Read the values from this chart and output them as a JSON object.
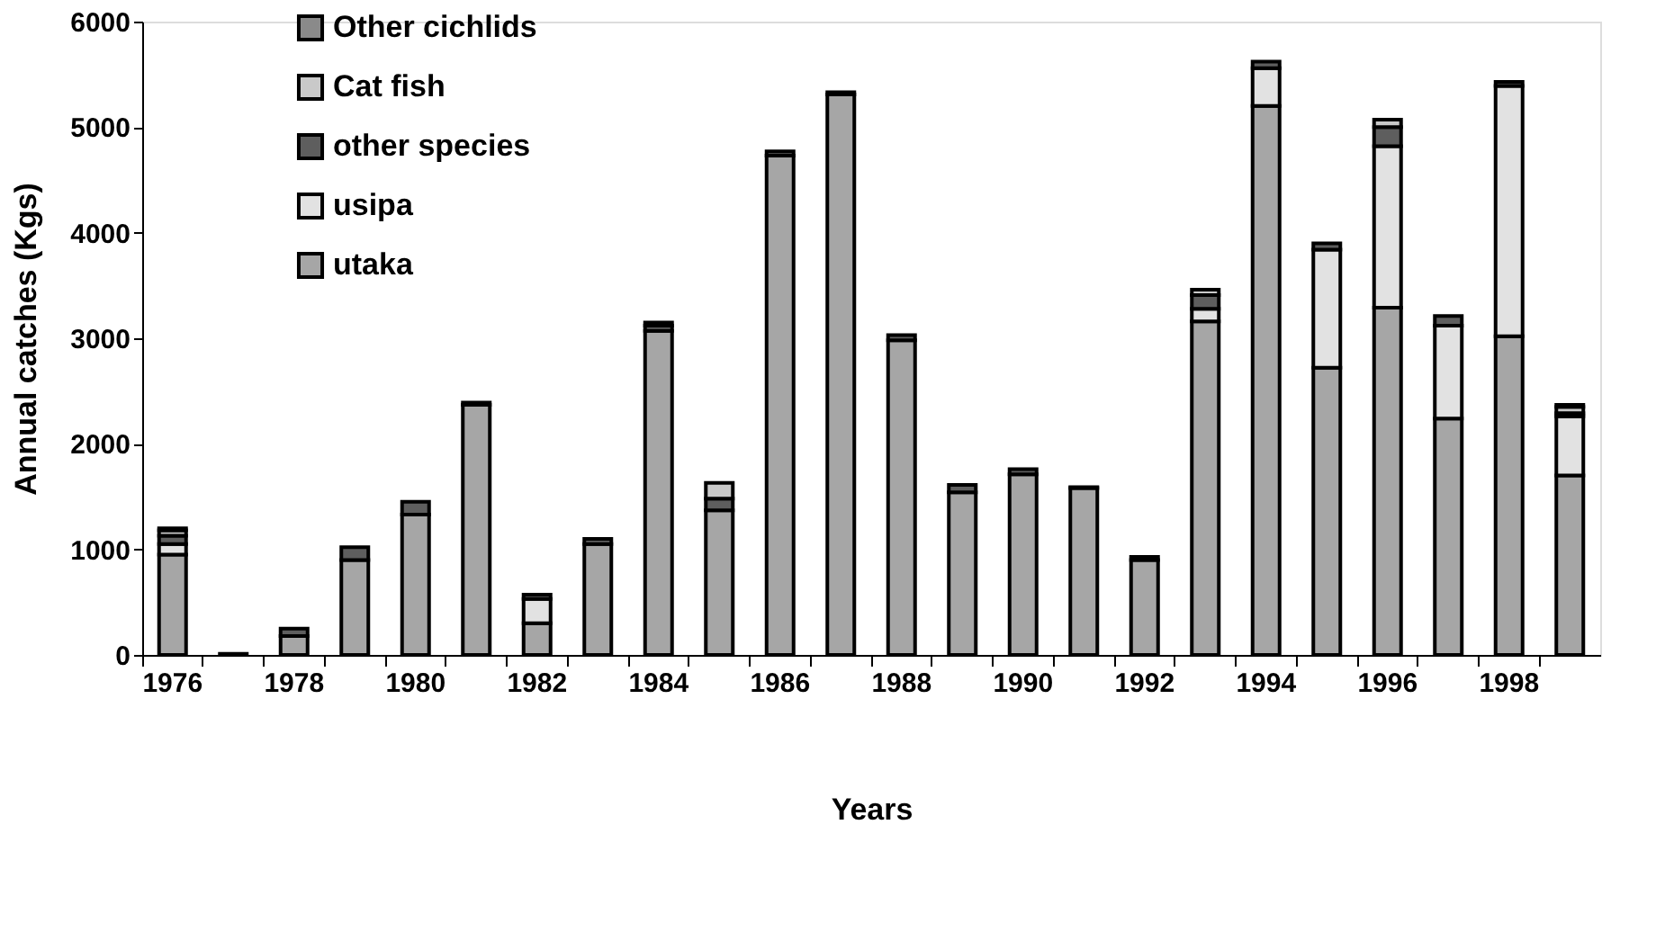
{
  "chart_data": {
    "type": "bar",
    "stacked": true,
    "xlabel": "Years",
    "ylabel": "Annual catches (Kgs)",
    "categories": [
      "1976",
      null,
      "1978",
      null,
      "1980",
      null,
      "1982",
      null,
      "1984",
      null,
      "1986",
      null,
      "1988",
      null,
      "1990",
      null,
      "1992",
      null,
      "1994",
      null,
      "1996",
      null,
      "1998",
      null
    ],
    "series": [
      {
        "name": "utaka",
        "color": "#a6a6a6",
        "values": [
          950,
          10,
          180,
          900,
          1330,
          2370,
          300,
          1050,
          3070,
          1370,
          4730,
          5310,
          2980,
          1540,
          1710,
          1580,
          900,
          3160,
          5200,
          2720,
          3290,
          2240,
          3020,
          1700
        ]
      },
      {
        "name": "usipa",
        "color": "#e2e2e2",
        "values": [
          100,
          null,
          null,
          null,
          null,
          null,
          230,
          null,
          null,
          null,
          null,
          null,
          null,
          null,
          null,
          null,
          null,
          120,
          360,
          1120,
          1530,
          880,
          2370,
          560
        ]
      },
      {
        "name": "other species",
        "color": "#5e5e5e",
        "values": [
          80,
          null,
          70,
          120,
          120,
          20,
          40,
          50,
          50,
          110,
          40,
          20,
          50,
          70,
          50,
          10,
          30,
          130,
          60,
          60,
          180,
          90,
          40,
          30
        ]
      },
      {
        "name": "Cat fish",
        "color": "#c9c9c9",
        "values": [
          50,
          null,
          null,
          null,
          null,
          null,
          null,
          null,
          30,
          150,
          null,
          null,
          null,
          null,
          null,
          null,
          null,
          50,
          null,
          null,
          70,
          null,
          null,
          60
        ]
      },
      {
        "name": "Other cichlids",
        "color": "#8a8a8a",
        "values": [
          20,
          null,
          null,
          null,
          null,
          null,
          null,
          null,
          null,
          null,
          null,
          null,
          null,
          null,
          null,
          null,
          null,
          null,
          null,
          null,
          null,
          null,
          null,
          20
        ]
      }
    ],
    "ylim": [
      0,
      6000
    ],
    "yticks": [
      0,
      1000,
      2000,
      3000,
      4000,
      5000,
      6000
    ],
    "grid": false,
    "legend": "top left"
  }
}
